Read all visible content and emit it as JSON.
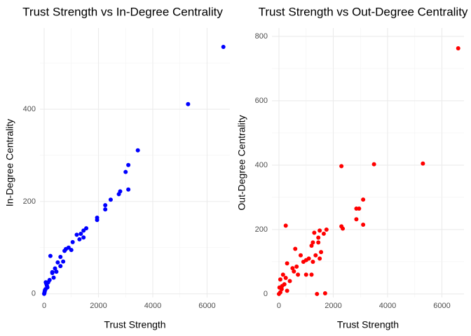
{
  "chart_data": [
    {
      "type": "scatter",
      "title": "Trust Strength vs In-Degree Centrality",
      "x_label": "Trust Strength",
      "y_label": "In-Degree Centrality",
      "color": "#0000ff",
      "xlim": [
        -155,
        6840
      ],
      "ylim": [
        -8,
        576
      ],
      "xticks": [
        0,
        2000,
        4000,
        6000
      ],
      "yticks": [
        0,
        200,
        400
      ],
      "grid": true,
      "x": [
        6600,
        5300,
        3450,
        3100,
        3000,
        3100,
        2800,
        2750,
        2450,
        2250,
        2250,
        1950,
        1950,
        1550,
        1450,
        1350,
        1450,
        1200,
        1050,
        900,
        800,
        750,
        600,
        500,
        400,
        300,
        200,
        100,
        50,
        20,
        0,
        230,
        300,
        150,
        80,
        600,
        1000,
        1300,
        700,
        450,
        350,
        120,
        60,
        30,
        10
      ],
      "y": [
        535,
        411,
        311,
        279,
        264,
        226,
        222,
        216,
        204,
        192,
        183,
        165,
        160,
        142,
        137,
        130,
        122,
        128,
        112,
        100,
        97,
        93,
        80,
        68,
        55,
        45,
        30,
        18,
        10,
        5,
        0,
        82,
        47,
        25,
        22,
        60,
        95,
        118,
        70,
        48,
        35,
        14,
        25,
        8,
        2
      ]
    },
    {
      "type": "scatter",
      "title": "Trust Strength vs Out-Degree Centrality",
      "x_label": "Trust Strength",
      "y_label": "Out-Degree Centrality",
      "color": "#ff0000",
      "xlim": [
        -258,
        6813
      ],
      "ylim": [
        -11,
        826
      ],
      "xticks": [
        0,
        2000,
        4000,
        6000
      ],
      "yticks": [
        0,
        200,
        400,
        600,
        800
      ],
      "grid": true,
      "x": [
        6600,
        5300,
        3500,
        2300,
        3100,
        2850,
        2950,
        3100,
        2850,
        2300,
        2350,
        1750,
        1500,
        1650,
        1300,
        1450,
        1250,
        1450,
        1200,
        1550,
        1350,
        1100,
        1000,
        600,
        800,
        900,
        250,
        500,
        300,
        700,
        1400,
        1700,
        1000,
        400,
        200,
        100,
        50,
        0,
        150,
        300,
        50,
        1500,
        1250,
        1200,
        550,
        650,
        250,
        120,
        20
      ],
      "y": [
        763,
        405,
        403,
        397,
        293,
        265,
        265,
        215,
        232,
        210,
        203,
        200,
        197,
        187,
        190,
        175,
        160,
        160,
        150,
        130,
        120,
        110,
        105,
        140,
        120,
        100,
        212,
        80,
        95,
        60,
        0,
        2,
        60,
        40,
        30,
        15,
        5,
        0,
        60,
        10,
        45,
        110,
        100,
        60,
        70,
        85,
        50,
        25,
        20
      ]
    }
  ]
}
